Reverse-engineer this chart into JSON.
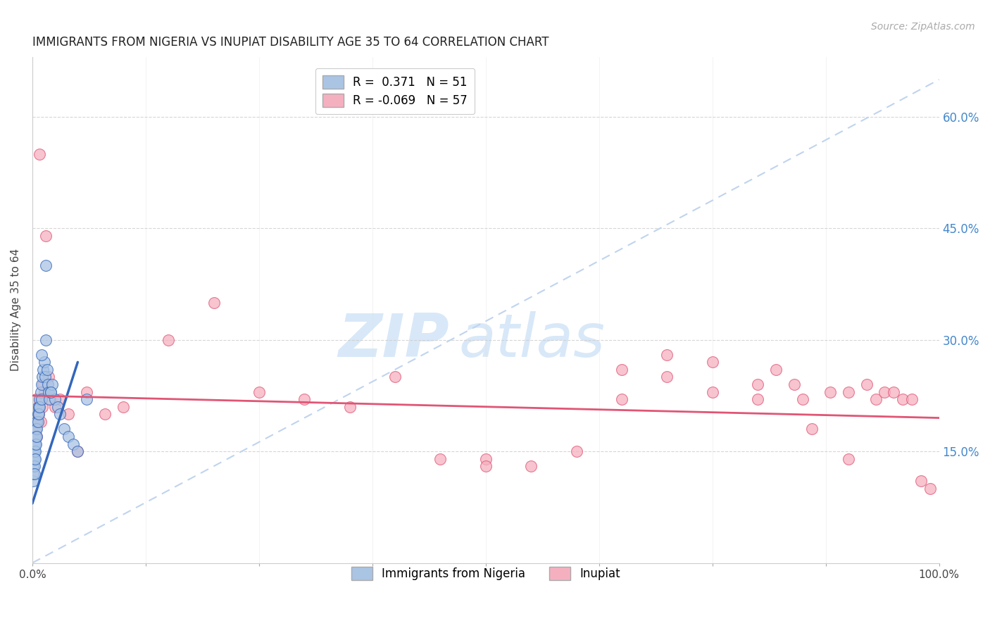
{
  "title": "IMMIGRANTS FROM NIGERIA VS INUPIAT DISABILITY AGE 35 TO 64 CORRELATION CHART",
  "source": "Source: ZipAtlas.com",
  "ylabel": "Disability Age 35 to 64",
  "xlim": [
    0,
    1.0
  ],
  "ylim": [
    0.0,
    0.68
  ],
  "xtick_positions": [
    0.0,
    0.125,
    0.25,
    0.375,
    0.5,
    0.625,
    0.75,
    0.875,
    1.0
  ],
  "xtick_labels": [
    "0.0%",
    "",
    "",
    "",
    "",
    "",
    "",
    "",
    "100.0%"
  ],
  "yticks": [
    0.15,
    0.3,
    0.45,
    0.6
  ],
  "yticklabels": [
    "15.0%",
    "30.0%",
    "45.0%",
    "60.0%"
  ],
  "nigeria_color": "#aac4e4",
  "inupiat_color": "#f5b0c0",
  "nigeria_line_color": "#3366bb",
  "inupiat_line_color": "#e05575",
  "diagonal_color": "#c0d4ee",
  "watermark_zip": "ZIP",
  "watermark_atlas": "atlas",
  "watermark_color": "#d8e8f8",
  "nigeria_R": 0.371,
  "nigeria_N": 51,
  "inupiat_R": -0.069,
  "inupiat_N": 57,
  "nigeria_line_x": [
    0.0,
    0.05
  ],
  "nigeria_line_y": [
    0.08,
    0.27
  ],
  "inupiat_line_x": [
    0.0,
    1.0
  ],
  "inupiat_line_y": [
    0.225,
    0.195
  ],
  "nigeria_x": [
    0.001,
    0.001,
    0.001,
    0.001,
    0.001,
    0.002,
    0.002,
    0.002,
    0.002,
    0.002,
    0.003,
    0.003,
    0.003,
    0.003,
    0.004,
    0.004,
    0.004,
    0.005,
    0.005,
    0.005,
    0.006,
    0.006,
    0.007,
    0.007,
    0.008,
    0.008,
    0.009,
    0.01,
    0.01,
    0.011,
    0.012,
    0.013,
    0.014,
    0.015,
    0.016,
    0.017,
    0.018,
    0.019,
    0.02,
    0.022,
    0.025,
    0.028,
    0.03,
    0.035,
    0.04,
    0.045,
    0.05,
    0.06,
    0.01,
    0.015,
    0.02
  ],
  "nigeria_y": [
    0.13,
    0.14,
    0.15,
    0.11,
    0.12,
    0.15,
    0.16,
    0.14,
    0.13,
    0.12,
    0.17,
    0.16,
    0.15,
    0.14,
    0.18,
    0.17,
    0.16,
    0.19,
    0.18,
    0.17,
    0.2,
    0.19,
    0.21,
    0.2,
    0.22,
    0.21,
    0.23,
    0.24,
    0.22,
    0.25,
    0.26,
    0.27,
    0.25,
    0.4,
    0.26,
    0.24,
    0.23,
    0.22,
    0.23,
    0.24,
    0.22,
    0.21,
    0.2,
    0.18,
    0.17,
    0.16,
    0.15,
    0.22,
    0.28,
    0.3,
    0.23
  ],
  "inupiat_x": [
    0.001,
    0.002,
    0.003,
    0.004,
    0.005,
    0.006,
    0.007,
    0.008,
    0.009,
    0.01,
    0.011,
    0.012,
    0.013,
    0.015,
    0.018,
    0.02,
    0.025,
    0.03,
    0.04,
    0.05,
    0.06,
    0.08,
    0.1,
    0.3,
    0.4,
    0.5,
    0.55,
    0.6,
    0.65,
    0.7,
    0.75,
    0.8,
    0.82,
    0.84,
    0.86,
    0.88,
    0.9,
    0.92,
    0.93,
    0.94,
    0.95,
    0.96,
    0.97,
    0.98,
    0.99,
    0.15,
    0.2,
    0.25,
    0.35,
    0.45,
    0.5,
    0.65,
    0.7,
    0.75,
    0.8,
    0.85,
    0.9
  ],
  "inupiat_y": [
    0.2,
    0.18,
    0.19,
    0.22,
    0.17,
    0.21,
    0.2,
    0.55,
    0.19,
    0.22,
    0.21,
    0.24,
    0.23,
    0.44,
    0.25,
    0.22,
    0.21,
    0.22,
    0.2,
    0.15,
    0.23,
    0.2,
    0.21,
    0.22,
    0.25,
    0.14,
    0.13,
    0.15,
    0.22,
    0.28,
    0.27,
    0.22,
    0.26,
    0.24,
    0.18,
    0.23,
    0.23,
    0.24,
    0.22,
    0.23,
    0.23,
    0.22,
    0.22,
    0.11,
    0.1,
    0.3,
    0.35,
    0.23,
    0.21,
    0.14,
    0.13,
    0.26,
    0.25,
    0.23,
    0.24,
    0.22,
    0.14
  ]
}
